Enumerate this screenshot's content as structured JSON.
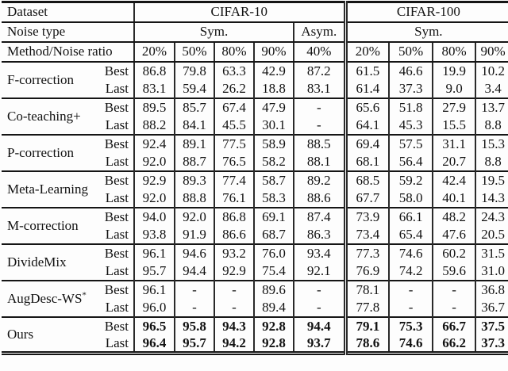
{
  "colors": {
    "text": "#121212",
    "rule": "#151515",
    "background": "#fdfdfd"
  },
  "table": {
    "header": {
      "dataset_label": "Dataset",
      "cifar10_label": "CIFAR-10",
      "cifar100_label": "CIFAR-100",
      "noise_type_label": "Noise type",
      "sym_cifar10_label": "Sym.",
      "asym_label": "Asym.",
      "sym_cifar100_label": "Sym.",
      "method_label": "Method/Noise ratio",
      "ratios": [
        "20%",
        "50%",
        "80%",
        "90%",
        "40%",
        "20%",
        "50%",
        "80%",
        "90%"
      ]
    },
    "row_labels": {
      "best": "Best",
      "last": "Last"
    },
    "methods": [
      {
        "name": "F-correction",
        "sup": "",
        "bold": false,
        "best": [
          "86.8",
          "79.8",
          "63.3",
          "42.9",
          "87.2",
          "61.5",
          "46.6",
          "19.9",
          "10.2"
        ],
        "last": [
          "83.1",
          "59.4",
          "26.2",
          "18.8",
          "83.1",
          "61.4",
          "37.3",
          "9.0",
          "3.4"
        ]
      },
      {
        "name": "Co-teaching+",
        "sup": "",
        "bold": false,
        "best": [
          "89.5",
          "85.7",
          "67.4",
          "47.9",
          "-",
          "65.6",
          "51.8",
          "27.9",
          "13.7"
        ],
        "last": [
          "88.2",
          "84.1",
          "45.5",
          "30.1",
          "-",
          "64.1",
          "45.3",
          "15.5",
          "8.8"
        ]
      },
      {
        "name": "P-correction",
        "sup": "",
        "bold": false,
        "best": [
          "92.4",
          "89.1",
          "77.5",
          "58.9",
          "88.5",
          "69.4",
          "57.5",
          "31.1",
          "15.3"
        ],
        "last": [
          "92.0",
          "88.7",
          "76.5",
          "58.2",
          "88.1",
          "68.1",
          "56.4",
          "20.7",
          "8.8"
        ]
      },
      {
        "name": "Meta-Learning",
        "sup": "",
        "bold": false,
        "best": [
          "92.9",
          "89.3",
          "77.4",
          "58.7",
          "89.2",
          "68.5",
          "59.2",
          "42.4",
          "19.5"
        ],
        "last": [
          "92.0",
          "88.8",
          "76.1",
          "58.3",
          "88.6",
          "67.7",
          "58.0",
          "40.1",
          "14.3"
        ]
      },
      {
        "name": "M-correction",
        "sup": "",
        "bold": false,
        "best": [
          "94.0",
          "92.0",
          "86.8",
          "69.1",
          "87.4",
          "73.9",
          "66.1",
          "48.2",
          "24.3"
        ],
        "last": [
          "93.8",
          "91.9",
          "86.6",
          "68.7",
          "86.3",
          "73.4",
          "65.4",
          "47.6",
          "20.5"
        ]
      },
      {
        "name": "DivideMix",
        "sup": "",
        "bold": false,
        "best": [
          "96.1",
          "94.6",
          "93.2",
          "76.0",
          "93.4",
          "77.3",
          "74.6",
          "60.2",
          "31.5"
        ],
        "last": [
          "95.7",
          "94.4",
          "92.9",
          "75.4",
          "92.1",
          "76.9",
          "74.2",
          "59.6",
          "31.0"
        ]
      },
      {
        "name": "AugDesc-WS",
        "sup": "*",
        "bold": false,
        "best": [
          "96.1",
          "-",
          "-",
          "89.6",
          "-",
          "78.1",
          "-",
          "-",
          "36.8"
        ],
        "last": [
          "96.0",
          "-",
          "-",
          "89.4",
          "-",
          "77.8",
          "-",
          "-",
          "36.7"
        ]
      },
      {
        "name": "Ours",
        "sup": "",
        "bold": true,
        "best": [
          "96.5",
          "95.8",
          "94.3",
          "92.8",
          "94.4",
          "79.1",
          "75.3",
          "66.7",
          "37.5"
        ],
        "last": [
          "96.4",
          "95.7",
          "94.2",
          "92.8",
          "93.7",
          "78.6",
          "74.6",
          "66.2",
          "37.3"
        ]
      }
    ]
  }
}
